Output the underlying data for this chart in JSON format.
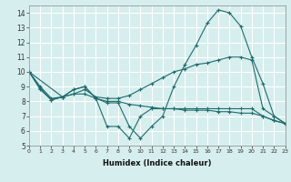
{
  "xlabel": "Humidex (Indice chaleur)",
  "background_color": "#d6eeee",
  "grid_color": "#ffffff",
  "line_color": "#1f6b6b",
  "xlim": [
    0,
    23
  ],
  "ylim": [
    5,
    14.5
  ],
  "xticks": [
    0,
    1,
    2,
    3,
    4,
    5,
    6,
    7,
    8,
    9,
    10,
    11,
    12,
    13,
    14,
    15,
    16,
    17,
    18,
    19,
    20,
    21,
    22,
    23
  ],
  "yticks": [
    5,
    6,
    7,
    8,
    9,
    10,
    11,
    12,
    13,
    14
  ],
  "lines": [
    {
      "x": [
        0,
        1,
        2,
        3,
        4,
        5,
        6,
        7,
        8,
        9,
        10,
        11,
        12,
        13,
        14,
        15,
        16,
        17,
        18,
        19,
        20,
        21,
        22,
        23
      ],
      "y": [
        10,
        8.8,
        8.1,
        8.3,
        8.8,
        9.0,
        8.2,
        7.9,
        7.9,
        6.3,
        5.5,
        6.3,
        7.0,
        9.0,
        10.5,
        11.8,
        13.3,
        14.2,
        14.0,
        13.1,
        11.0,
        9.2,
        7.0,
        6.5
      ]
    },
    {
      "x": [
        0,
        1,
        2,
        3,
        4,
        5,
        6,
        7,
        8,
        9,
        10,
        11,
        12,
        13,
        14,
        15,
        16,
        17,
        18,
        19,
        20,
        21,
        22,
        23
      ],
      "y": [
        10,
        9.0,
        8.2,
        8.3,
        8.5,
        8.8,
        8.3,
        8.2,
        8.2,
        8.4,
        8.8,
        9.2,
        9.6,
        10.0,
        10.2,
        10.5,
        10.6,
        10.8,
        11.0,
        11.0,
        10.8,
        7.5,
        7.0,
        6.5
      ]
    },
    {
      "x": [
        0,
        1,
        2,
        3,
        4,
        5,
        6,
        7,
        8,
        9,
        10,
        11,
        12,
        13,
        14,
        15,
        16,
        17,
        18,
        19,
        20,
        21,
        22,
        23
      ],
      "y": [
        10,
        8.9,
        8.1,
        8.3,
        8.5,
        8.5,
        8.2,
        8.0,
        8.0,
        7.8,
        7.7,
        7.6,
        7.5,
        7.5,
        7.4,
        7.4,
        7.4,
        7.3,
        7.3,
        7.2,
        7.2,
        7.0,
        6.7,
        6.5
      ]
    },
    {
      "x": [
        0,
        3,
        4,
        5,
        6,
        7,
        8,
        9,
        10,
        11,
        12,
        13,
        14,
        15,
        16,
        17,
        18,
        19,
        20,
        21,
        22,
        23
      ],
      "y": [
        10,
        8.3,
        8.8,
        9.0,
        8.2,
        6.3,
        6.3,
        5.5,
        7.0,
        7.5,
        7.5,
        7.5,
        7.5,
        7.5,
        7.5,
        7.5,
        7.5,
        7.5,
        7.5,
        7.0,
        6.7,
        6.5
      ]
    }
  ],
  "figsize": [
    3.2,
    2.0
  ],
  "dpi": 100
}
